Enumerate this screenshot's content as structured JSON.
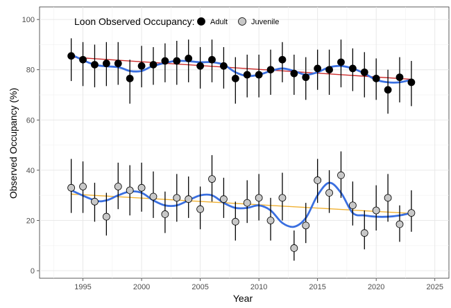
{
  "chart_data": {
    "type": "scatter",
    "xlabel": "Year",
    "ylabel": "Observed Occupancy (%)",
    "xlim": [
      1991.3,
      2026.2
    ],
    "ylim": [
      -3,
      105
    ],
    "x_ticks": [
      1995,
      2000,
      2005,
      2010,
      2015,
      2020,
      2025
    ],
    "y_ticks": [
      0,
      20,
      40,
      60,
      80,
      100
    ],
    "grid": true,
    "legend": {
      "title": "Loon Observed Occupancy:",
      "position": "top-left",
      "entries": [
        "Adult",
        "Juvenile"
      ]
    },
    "series": [
      {
        "name": "Adult",
        "fill": "#000000",
        "x": [
          1994,
          1995,
          1996,
          1997,
          1998,
          1999,
          2000,
          2001,
          2002,
          2003,
          2004,
          2005,
          2006,
          2007,
          2008,
          2009,
          2010,
          2011,
          2012,
          2013,
          2014,
          2015,
          2016,
          2017,
          2018,
          2019,
          2020,
          2021,
          2022,
          2023
        ],
        "y": [
          85.5,
          84,
          82,
          82.5,
          82.5,
          76.5,
          81.5,
          82,
          83.5,
          83.5,
          84.5,
          81.5,
          84,
          81.5,
          76.5,
          78,
          78,
          80,
          84,
          78.5,
          77,
          80.5,
          80,
          83,
          80.5,
          79,
          76.5,
          72,
          77,
          75
        ],
        "err_low": [
          75.5,
          73.5,
          73,
          73.5,
          74,
          66.5,
          73,
          74,
          75,
          74,
          75,
          72.5,
          75,
          72.5,
          66.5,
          69,
          69,
          70,
          75,
          70,
          68,
          72,
          70,
          73,
          71.5,
          69,
          68,
          62.5,
          67,
          65.5
        ],
        "err_high": [
          92.5,
          91,
          90,
          91,
          91,
          84,
          89.5,
          89,
          90.5,
          91.5,
          92,
          89,
          92,
          89,
          85,
          86,
          86,
          88,
          91,
          86,
          85,
          88,
          88,
          92,
          88.5,
          87,
          84.5,
          80,
          85,
          83.5
        ],
        "trend_line": {
          "x": [
            1994,
            2023
          ],
          "y": [
            85.0,
            76.2
          ],
          "color": "#cc2a2a"
        },
        "smooth_line": {
          "x": [
            1994,
            1996,
            1998,
            1999,
            2000,
            2001,
            2003,
            2005,
            2006,
            2007,
            2008,
            2009,
            2010,
            2011,
            2012,
            2013,
            2014,
            2015,
            2016,
            2017,
            2018,
            2019,
            2020,
            2021,
            2022,
            2023
          ],
          "y": [
            86,
            82,
            81,
            79.5,
            79.5,
            81.5,
            83.5,
            83,
            83,
            82,
            79,
            77.5,
            78,
            79.5,
            80.5,
            79.5,
            78,
            79,
            81,
            81.5,
            80.5,
            78.5,
            76,
            75,
            75,
            76
          ],
          "color": "#3a6fe0"
        }
      },
      {
        "name": "Juvenile",
        "fill": "#c8c8c8",
        "x": [
          1994,
          1995,
          1996,
          1997,
          1998,
          1999,
          2000,
          2001,
          2002,
          2003,
          2004,
          2005,
          2006,
          2007,
          2008,
          2009,
          2010,
          2011,
          2012,
          2013,
          2014,
          2015,
          2016,
          2017,
          2018,
          2019,
          2020,
          2021,
          2022,
          2023
        ],
        "y": [
          33,
          33.5,
          27.5,
          21.5,
          33.5,
          32,
          33,
          29.5,
          22.5,
          29,
          28.5,
          24.5,
          36.5,
          28.5,
          19.5,
          27,
          29,
          20,
          29,
          9,
          18,
          36,
          31,
          38,
          26,
          15,
          24,
          29,
          18.5,
          23
        ],
        "err_low": [
          23,
          23,
          19.5,
          14,
          24.5,
          22,
          23.5,
          21,
          15,
          19.5,
          21,
          16.5,
          27.5,
          21,
          12,
          19,
          20,
          12,
          20,
          4,
          11,
          27,
          23,
          29,
          18,
          8.5,
          16,
          19.5,
          11.5,
          15.5
        ],
        "err_high": [
          44.5,
          43.5,
          35,
          31,
          43,
          42,
          43,
          39.5,
          31.5,
          38.5,
          37.5,
          33.5,
          46,
          37,
          27.5,
          36,
          38.5,
          29,
          39,
          16,
          27,
          44.5,
          40,
          47.5,
          35.5,
          24,
          34,
          38.5,
          26,
          32
        ],
        "trend_line": {
          "x": [
            1994,
            2023
          ],
          "y": [
            30.5,
            22.8
          ],
          "color": "#f0b030"
        },
        "smooth_line": {
          "x": [
            1994,
            1996,
            1997,
            1998,
            1999,
            2000,
            2001,
            2002,
            2003,
            2004,
            2005,
            2006,
            2007,
            2008,
            2009,
            2010,
            2011,
            2012,
            2013,
            2014,
            2015,
            2016,
            2017,
            2018,
            2019,
            2020,
            2021,
            2022,
            2023
          ],
          "y": [
            32,
            28,
            28,
            30,
            31.5,
            31,
            28,
            26,
            26,
            28,
            30,
            30,
            27,
            25,
            25,
            26,
            24,
            19,
            17.5,
            21,
            30,
            35,
            31,
            23,
            22,
            21.5,
            21.5,
            22,
            23
          ],
          "color": "#3a6fe0"
        }
      }
    ]
  }
}
